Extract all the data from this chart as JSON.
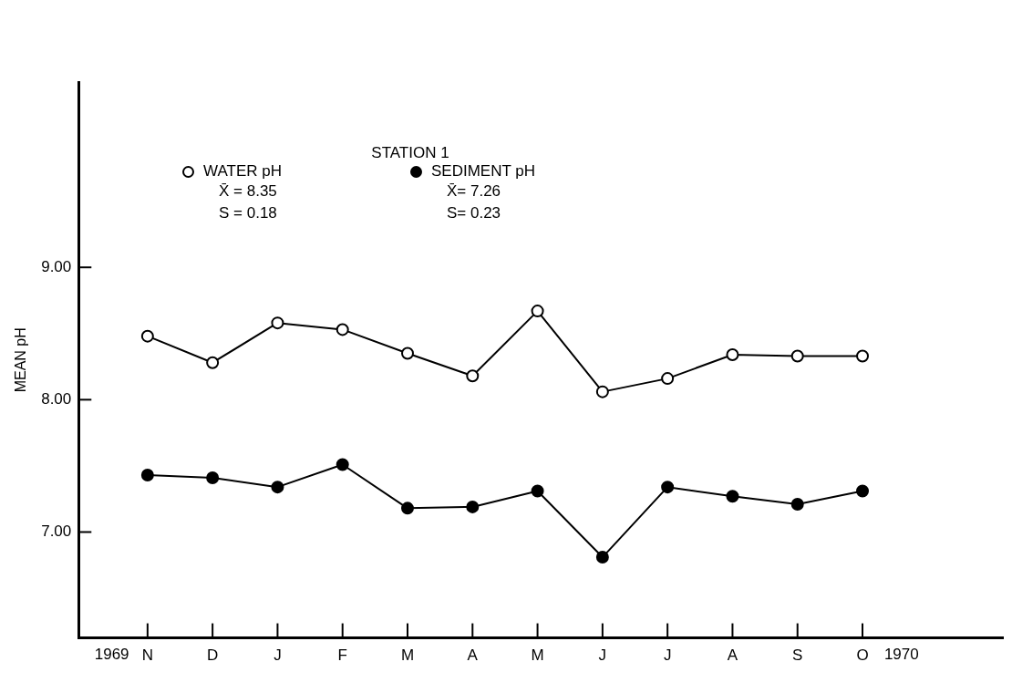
{
  "chart_data": {
    "type": "line",
    "title": "STATION 1",
    "ylabel": "MEAN pH",
    "categories": [
      "N",
      "D",
      "J",
      "F",
      "M",
      "A",
      "M",
      "J",
      "J",
      "A",
      "S",
      "O"
    ],
    "series": [
      {
        "name": "WATER pH",
        "color": "#000000",
        "marker": "circle",
        "values": [
          8.48,
          8.28,
          8.58,
          8.53,
          8.35,
          8.18,
          8.67,
          8.06,
          8.16,
          8.34,
          8.33,
          8.33
        ]
      },
      {
        "name": "SEDIMENT pH",
        "color": "#000000",
        "marker": "circle",
        "values": [
          7.43,
          7.41,
          7.34,
          7.51,
          7.18,
          7.19,
          7.31,
          6.81,
          7.34,
          7.27,
          7.21,
          7.31
        ]
      }
    ],
    "ylim": [
      6.2,
      10.4
    ],
    "yticks": [
      {
        "value": 7,
        "label": "7.00"
      },
      {
        "value": 8,
        "label": "8.00"
      },
      {
        "value": 9,
        "label": "9.00"
      }
    ],
    "annotations": [
      "X̄ = 8.35",
      "S = 0.18",
      "X̄= 7.26",
      "S= 0.23",
      "1969",
      "1970"
    ],
    "legend": "top",
    "grid": false,
    "line_style": "solid"
  }
}
